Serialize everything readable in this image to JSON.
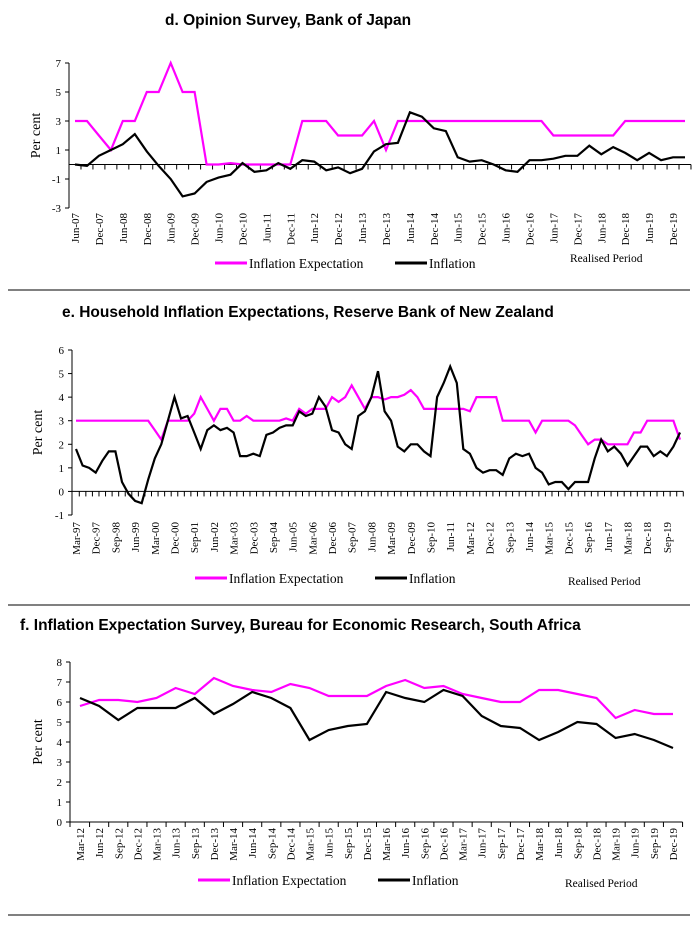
{
  "colors": {
    "expectation": "#ff00ff",
    "inflation": "#000000"
  },
  "chart_data": [
    {
      "type": "line",
      "title": "d.  Opinion Survey, Bank of Japan",
      "ylabel": "Per cent",
      "xlabel": "Realised Period",
      "ylim": [
        -3,
        7
      ],
      "yticks": [
        -3,
        -1,
        1,
        3,
        5,
        7
      ],
      "frequency": "quarterly",
      "x_start": "Jun-07",
      "x_end": "Mar-20",
      "xtick_labels": [
        "Jun-07",
        "Dec-07",
        "Jun-08",
        "Dec-08",
        "Jun-09",
        "Dec-09",
        "Jun-10",
        "Dec-10",
        "Jun-11",
        "Dec-11",
        "Jun-12",
        "Dec-12",
        "Jun-13",
        "Dec-13",
        "Jun-14",
        "Dec-14",
        "Jun-15",
        "Dec-15",
        "Jun-16",
        "Dec-16",
        "Jun-17",
        "Dec-17",
        "Jun-18",
        "Dec-18",
        "Jun-19",
        "Dec-19"
      ],
      "legend": "bottom",
      "grid": false,
      "series": [
        {
          "name": "Inflation Expectation",
          "values": [
            3,
            3,
            2,
            1,
            3,
            3,
            5,
            5,
            7,
            5,
            5,
            0,
            0,
            0.1,
            0,
            0,
            0,
            0,
            0,
            3,
            3,
            3,
            2,
            2,
            2,
            3,
            1,
            3,
            3,
            3,
            3,
            3,
            3,
            3,
            3,
            3,
            3,
            3,
            3,
            3,
            2,
            2,
            2,
            2,
            2,
            2,
            3,
            3,
            3,
            3,
            3,
            3
          ]
        },
        {
          "name": "Inflation",
          "values": [
            0,
            -0.1,
            0.6,
            1.0,
            1.4,
            2.1,
            0.9,
            -0.1,
            -1.0,
            -2.2,
            -2.0,
            -1.2,
            -0.9,
            -0.7,
            0.1,
            -0.5,
            -0.4,
            0.1,
            -0.3,
            0.3,
            0.2,
            -0.4,
            -0.2,
            -0.6,
            -0.3,
            0.9,
            1.4,
            1.5,
            3.6,
            3.3,
            2.5,
            2.3,
            0.5,
            0.2,
            0.3,
            0.0,
            -0.4,
            -0.5,
            0.3,
            0.3,
            0.4,
            0.6,
            0.6,
            1.3,
            0.7,
            1.2,
            0.8,
            0.3,
            0.8,
            0.3,
            0.5,
            0.5
          ]
        }
      ]
    },
    {
      "type": "line",
      "title": "e.   Household Inflation Expectations, Reserve Bank of New Zealand",
      "ylabel": "Per cent",
      "xlabel": "Realised Period",
      "ylim": [
        -1,
        6
      ],
      "yticks": [
        -1,
        0,
        1,
        2,
        3,
        4,
        5,
        6
      ],
      "frequency": "quarterly",
      "x_start": "Mar-97",
      "x_end": "Mar-20",
      "xtick_labels": [
        "Mar-97",
        "Dec-97",
        "Sep-98",
        "Jun-99",
        "Mar-00",
        "Dec-00",
        "Sep-01",
        "Jun-02",
        "Mar-03",
        "Dec-03",
        "Sep-04",
        "Jun-05",
        "Mar-06",
        "Dec-06",
        "Sep-07",
        "Jun-08",
        "Mar-09",
        "Dec-09",
        "Sep-10",
        "Jun-11",
        "Mar-12",
        "Dec-12",
        "Sep-13",
        "Jun-14",
        "Mar-15",
        "Dec-15",
        "Sep-16",
        "Jun-17",
        "Mar-18",
        "Dec-18",
        "Sep-19"
      ],
      "legend": "bottom",
      "grid": false,
      "series": [
        {
          "name": "Inflation Expectation",
          "values": [
            3,
            3,
            3,
            3,
            3,
            3,
            3,
            3,
            3,
            3,
            3,
            3,
            2.6,
            2.2,
            3,
            3,
            3,
            3,
            3.3,
            4,
            3.5,
            3,
            3.5,
            3.5,
            3,
            3,
            3.2,
            3,
            3,
            3,
            3,
            3,
            3.1,
            3,
            3.5,
            3.3,
            3.5,
            3.5,
            3.5,
            4,
            3.8,
            4,
            4.5,
            4,
            3.5,
            4,
            4,
            3.9,
            4,
            4,
            4.1,
            4.3,
            4,
            3.5,
            3.5,
            3.5,
            3.5,
            3.5,
            3.5,
            3.5,
            3.4,
            4,
            4,
            4,
            4,
            3,
            3,
            3,
            3,
            3,
            2.5,
            3,
            3,
            3,
            3,
            3,
            2.8,
            2.4,
            2,
            2.2,
            2.2,
            2,
            2,
            2,
            2,
            2.5,
            2.5,
            3,
            3,
            3,
            3,
            3,
            2.2
          ]
        },
        {
          "name": "Inflation",
          "values": [
            1.8,
            1.1,
            1.0,
            0.8,
            1.3,
            1.7,
            1.7,
            0.4,
            -0.1,
            -0.4,
            -0.5,
            0.5,
            1.4,
            2.0,
            3.0,
            4.0,
            3.1,
            3.2,
            2.5,
            1.8,
            2.6,
            2.8,
            2.6,
            2.7,
            2.5,
            1.5,
            1.5,
            1.6,
            1.5,
            2.4,
            2.5,
            2.7,
            2.8,
            2.8,
            3.4,
            3.2,
            3.3,
            4.0,
            3.6,
            2.6,
            2.5,
            2.0,
            1.8,
            3.2,
            3.4,
            4.0,
            5.1,
            3.4,
            3.0,
            1.9,
            1.7,
            2.0,
            2.0,
            1.7,
            1.5,
            4.0,
            4.6,
            5.3,
            4.6,
            1.8,
            1.6,
            1.0,
            0.8,
            0.9,
            0.9,
            0.7,
            1.4,
            1.6,
            1.5,
            1.6,
            1.0,
            0.8,
            0.3,
            0.4,
            0.4,
            0.1,
            0.4,
            0.4,
            0.4,
            1.4,
            2.2,
            1.7,
            1.9,
            1.6,
            1.1,
            1.5,
            1.9,
            1.9,
            1.5,
            1.7,
            1.5,
            1.9,
            2.5
          ]
        }
      ]
    },
    {
      "type": "line",
      "title": "f.   Inflation Expectation Survey, Bureau for Economic Research, South Africa",
      "ylabel": "Per cent",
      "xlabel": "Realised Period",
      "ylim": [
        0,
        8
      ],
      "yticks": [
        0,
        1,
        2,
        3,
        4,
        5,
        6,
        7,
        8
      ],
      "frequency": "quarterly",
      "x_start": "Mar-12",
      "x_end": "Dec-19",
      "xtick_labels": [
        "Mar-12",
        "Jun-12",
        "Sep-12",
        "Dec-12",
        "Mar-13",
        "Jun-13",
        "Sep-13",
        "Dec-13",
        "Mar-14",
        "Jun-14",
        "Sep-14",
        "Dec-14",
        "Mar-15",
        "Jun-15",
        "Sep-15",
        "Dec-15",
        "Mar-16",
        "Jun-16",
        "Sep-16",
        "Dec-16",
        "Mar-17",
        "Jun-17",
        "Sep-17",
        "Dec-17",
        "Mar-18",
        "Jun-18",
        "Sep-18",
        "Dec-18",
        "Mar-19",
        "Jun-19",
        "Sep-19",
        "Dec-19"
      ],
      "legend": "bottom",
      "grid": false,
      "series": [
        {
          "name": "Inflation Expectation",
          "values": [
            5.8,
            6.1,
            6.1,
            6.0,
            6.2,
            6.7,
            6.4,
            7.2,
            6.8,
            6.6,
            6.5,
            6.9,
            6.7,
            6.3,
            6.3,
            6.3,
            6.8,
            7.1,
            6.7,
            6.8,
            6.4,
            6.2,
            6.0,
            6.0,
            6.6,
            6.6,
            6.4,
            6.2,
            5.2,
            5.6,
            5.4,
            5.4
          ]
        },
        {
          "name": "Inflation",
          "values": [
            6.2,
            5.8,
            5.1,
            5.7,
            5.7,
            5.7,
            6.2,
            5.4,
            5.9,
            6.5,
            6.2,
            5.7,
            4.1,
            4.6,
            4.8,
            4.9,
            6.5,
            6.2,
            6.0,
            6.6,
            6.3,
            5.3,
            4.8,
            4.7,
            4.1,
            4.5,
            5.0,
            4.9,
            4.2,
            4.4,
            4.1,
            3.7
          ]
        }
      ]
    }
  ]
}
